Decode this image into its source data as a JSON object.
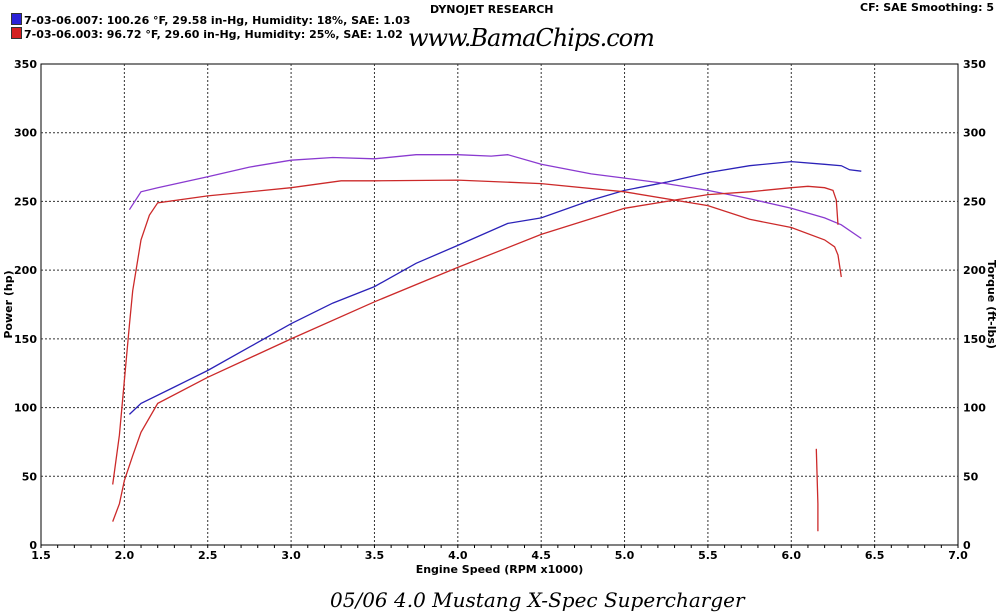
{
  "header": {
    "title": "DYNOJET RESEARCH",
    "settings": "CF: SAE  Smoothing: 5",
    "logo_text": "www.BamaChips.com",
    "runs": [
      {
        "label": "7-03-06.007: 100.26 °F, 29.58 in-Hg, Humidity: 18%, SAE: 1.03",
        "color": "#2b22d8"
      },
      {
        "label": "7-03-06.003: 96.72 °F, 29.60 in-Hg, Humidity: 25%, SAE: 1.02",
        "color": "#d42020"
      }
    ]
  },
  "caption": "05/06 4.0 Mustang X-Spec Supercharger",
  "chart_data": {
    "type": "line",
    "xlabel": "Engine Speed (RPM x1000)",
    "ylabel": "Power (hp)",
    "y2label": "Torque (ft-lbs)",
    "xlim": [
      1.5,
      7.0
    ],
    "ylim": [
      0,
      350
    ],
    "xticks": [
      "1.5",
      "2.0",
      "2.5",
      "3.0",
      "3.5",
      "4.0",
      "4.5",
      "5.0",
      "5.5",
      "6.0",
      "6.5",
      "7.0"
    ],
    "yticks": [
      "0",
      "50",
      "100",
      "150",
      "200",
      "250",
      "300",
      "350"
    ],
    "grid": true,
    "series": [
      {
        "name": "7-03-06.007 Power",
        "color": "#2b22b8",
        "x": [
          2.03,
          2.1,
          2.3,
          2.5,
          2.75,
          3.0,
          3.25,
          3.5,
          3.75,
          4.0,
          4.15,
          4.3,
          4.5,
          4.8,
          5.0,
          5.25,
          5.5,
          5.75,
          6.0,
          6.2,
          6.3,
          6.35,
          6.42
        ],
        "y": [
          95,
          103,
          115,
          127,
          144,
          161,
          176,
          188,
          205,
          218,
          226,
          234,
          238,
          251,
          258,
          264,
          271,
          276,
          279,
          277,
          276,
          273,
          272
        ]
      },
      {
        "name": "7-03-06.007 Torque",
        "color": "#8a3ad0",
        "x": [
          2.03,
          2.1,
          2.2,
          2.5,
          2.75,
          3.0,
          3.25,
          3.5,
          3.75,
          4.0,
          4.2,
          4.3,
          4.5,
          4.8,
          5.0,
          5.25,
          5.5,
          5.75,
          6.0,
          6.2,
          6.3,
          6.42
        ],
        "y": [
          244,
          257,
          260,
          268,
          275,
          280,
          282,
          281,
          284,
          284,
          283,
          284,
          277,
          270,
          267,
          263,
          258,
          252,
          245,
          238,
          233,
          223
        ]
      },
      {
        "name": "7-03-06.003 Power",
        "color": "#cc2a2a",
        "x": [
          1.93,
          1.97,
          2.0,
          2.05,
          2.1,
          2.2,
          2.5,
          3.0,
          3.5,
          4.0,
          4.5,
          5.0,
          5.5,
          5.75,
          6.0,
          6.1,
          6.2,
          6.25,
          6.27,
          6.28
        ],
        "y": [
          17,
          30,
          47,
          65,
          82,
          103,
          122,
          150,
          177,
          202,
          226,
          245,
          255,
          257,
          260,
          261,
          260,
          258,
          251,
          233
        ]
      },
      {
        "name": "7-03-06.003 Torque",
        "color": "#cc2a2a",
        "x": [
          1.93,
          1.97,
          2.0,
          2.03,
          2.05,
          2.1,
          2.15,
          2.2,
          2.5,
          3.0,
          3.3,
          3.5,
          4.0,
          4.5,
          5.0,
          5.5,
          5.75,
          6.0,
          6.2,
          6.26,
          6.28,
          6.3
        ],
        "y": [
          44,
          80,
          120,
          160,
          185,
          222,
          240,
          249,
          254,
          260,
          265,
          265,
          265.5,
          263,
          257,
          247,
          237,
          231,
          222,
          217,
          211,
          195
        ]
      },
      {
        "name": "7-03-06.003 Spike",
        "color": "#cc2a2a",
        "x": [
          6.15,
          6.16,
          6.16
        ],
        "y": [
          70,
          30,
          10
        ]
      }
    ]
  }
}
